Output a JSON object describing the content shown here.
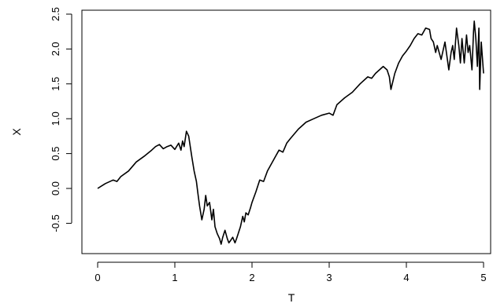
{
  "chart_data": {
    "type": "line",
    "title": "",
    "xlabel": "T",
    "ylabel": "X",
    "xlim": [
      -0.2,
      5.1
    ],
    "ylim": [
      -0.95,
      2.55
    ],
    "xticks": [
      0,
      1,
      2,
      3,
      4,
      5
    ],
    "xtick_labels": [
      "0",
      "1",
      "2",
      "3",
      "4",
      "5"
    ],
    "yticks": [
      -0.5,
      0.0,
      0.5,
      1.0,
      1.5,
      2.0,
      2.5
    ],
    "ytick_labels": [
      "-0.5",
      "0.0",
      "0.5",
      "1.0",
      "1.5",
      "2.0",
      "2.5"
    ],
    "grid": false,
    "legend": "none",
    "line_color": "#000000",
    "series": [
      {
        "x": [
          0.0,
          0.1,
          0.2,
          0.25,
          0.3,
          0.4,
          0.5,
          0.6,
          0.7,
          0.75,
          0.8,
          0.85,
          0.9,
          0.95,
          1.0,
          1.05,
          1.08,
          1.1,
          1.12,
          1.15,
          1.18,
          1.2,
          1.22,
          1.25,
          1.28,
          1.3,
          1.32,
          1.35,
          1.38,
          1.4,
          1.42,
          1.45,
          1.48,
          1.5,
          1.52,
          1.55,
          1.58,
          1.6,
          1.62,
          1.65,
          1.68,
          1.7,
          1.72,
          1.75,
          1.78,
          1.8,
          1.82,
          1.85,
          1.88,
          1.9,
          1.92,
          1.95,
          1.98,
          2.0,
          2.05,
          2.1,
          2.15,
          2.2,
          2.25,
          2.3,
          2.35,
          2.4,
          2.45,
          2.5,
          2.6,
          2.7,
          2.8,
          2.9,
          3.0,
          3.05,
          3.1,
          3.2,
          3.3,
          3.4,
          3.5,
          3.55,
          3.6,
          3.7,
          3.75,
          3.78,
          3.8,
          3.85,
          3.9,
          3.95,
          4.0,
          4.05,
          4.1,
          4.15,
          4.2,
          4.25,
          4.3,
          4.32,
          4.35,
          4.38,
          4.4,
          4.45,
          4.5,
          4.55,
          4.58,
          4.6,
          4.62,
          4.65,
          4.68,
          4.7,
          4.72,
          4.75,
          4.78,
          4.8,
          4.82,
          4.85,
          4.87,
          4.88,
          4.9,
          4.92,
          4.94,
          4.95,
          4.97,
          5.0
        ],
        "values": [
          0.0,
          0.07,
          0.12,
          0.1,
          0.17,
          0.25,
          0.38,
          0.46,
          0.55,
          0.6,
          0.63,
          0.57,
          0.6,
          0.62,
          0.56,
          0.65,
          0.55,
          0.68,
          0.6,
          0.82,
          0.75,
          0.6,
          0.45,
          0.25,
          0.1,
          -0.08,
          -0.25,
          -0.45,
          -0.3,
          -0.1,
          -0.25,
          -0.2,
          -0.45,
          -0.3,
          -0.55,
          -0.65,
          -0.72,
          -0.8,
          -0.7,
          -0.6,
          -0.72,
          -0.78,
          -0.75,
          -0.7,
          -0.78,
          -0.72,
          -0.65,
          -0.55,
          -0.4,
          -0.48,
          -0.35,
          -0.38,
          -0.28,
          -0.2,
          -0.05,
          0.12,
          0.1,
          0.25,
          0.35,
          0.45,
          0.55,
          0.52,
          0.65,
          0.72,
          0.85,
          0.95,
          1.0,
          1.05,
          1.08,
          1.05,
          1.2,
          1.3,
          1.38,
          1.5,
          1.6,
          1.58,
          1.65,
          1.75,
          1.7,
          1.6,
          1.42,
          1.65,
          1.8,
          1.9,
          1.97,
          2.05,
          2.15,
          2.22,
          2.2,
          2.3,
          2.28,
          2.15,
          2.1,
          1.95,
          2.05,
          1.85,
          2.1,
          1.7,
          1.95,
          2.05,
          1.85,
          2.3,
          2.05,
          1.8,
          2.15,
          1.8,
          2.2,
          1.95,
          2.05,
          1.7,
          2.25,
          2.4,
          2.15,
          1.75,
          2.3,
          1.42,
          2.1,
          1.65
        ]
      }
    ]
  }
}
